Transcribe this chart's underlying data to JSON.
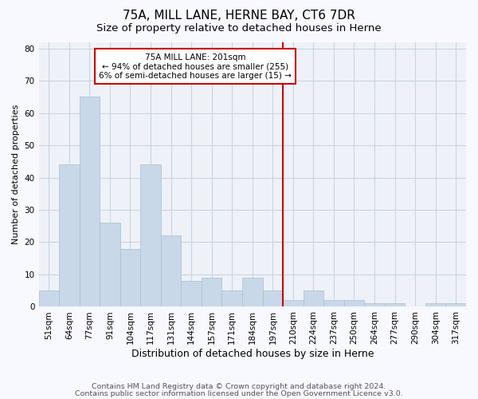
{
  "title1": "75A, MILL LANE, HERNE BAY, CT6 7DR",
  "title2": "Size of property relative to detached houses in Herne",
  "xlabel": "Distribution of detached houses by size in Herne",
  "ylabel": "Number of detached properties",
  "categories": [
    "51sqm",
    "64sqm",
    "77sqm",
    "91sqm",
    "104sqm",
    "117sqm",
    "131sqm",
    "144sqm",
    "157sqm",
    "171sqm",
    "184sqm",
    "197sqm",
    "210sqm",
    "224sqm",
    "237sqm",
    "250sqm",
    "264sqm",
    "277sqm",
    "290sqm",
    "304sqm",
    "317sqm"
  ],
  "values": [
    5,
    44,
    65,
    26,
    18,
    44,
    22,
    8,
    9,
    5,
    9,
    5,
    2,
    5,
    2,
    2,
    1,
    1,
    0,
    1,
    1
  ],
  "bar_color": "#c8d8e8",
  "bar_edge_color": "#a8bece",
  "bar_linewidth": 0.5,
  "vline_color": "#cc0000",
  "annotation_line1": "75A MILL LANE: 201sqm",
  "annotation_line2": "← 94% of detached houses are smaller (255)",
  "annotation_line3": "6% of semi-detached houses are larger (15) →",
  "annotation_box_color": "#cc0000",
  "ylim": [
    0,
    82
  ],
  "yticks": [
    0,
    10,
    20,
    30,
    40,
    50,
    60,
    70,
    80
  ],
  "grid_color": "#c8d4e4",
  "background_color": "#eef2f8",
  "fig_facecolor": "#f8f8ff",
  "footer1": "Contains HM Land Registry data © Crown copyright and database right 2024.",
  "footer2": "Contains public sector information licensed under the Open Government Licence v3.0.",
  "title1_fontsize": 11,
  "title2_fontsize": 9.5,
  "xlabel_fontsize": 9,
  "ylabel_fontsize": 8,
  "tick_fontsize": 7.5,
  "footer_fontsize": 6.8,
  "annot_fontsize": 7.5
}
